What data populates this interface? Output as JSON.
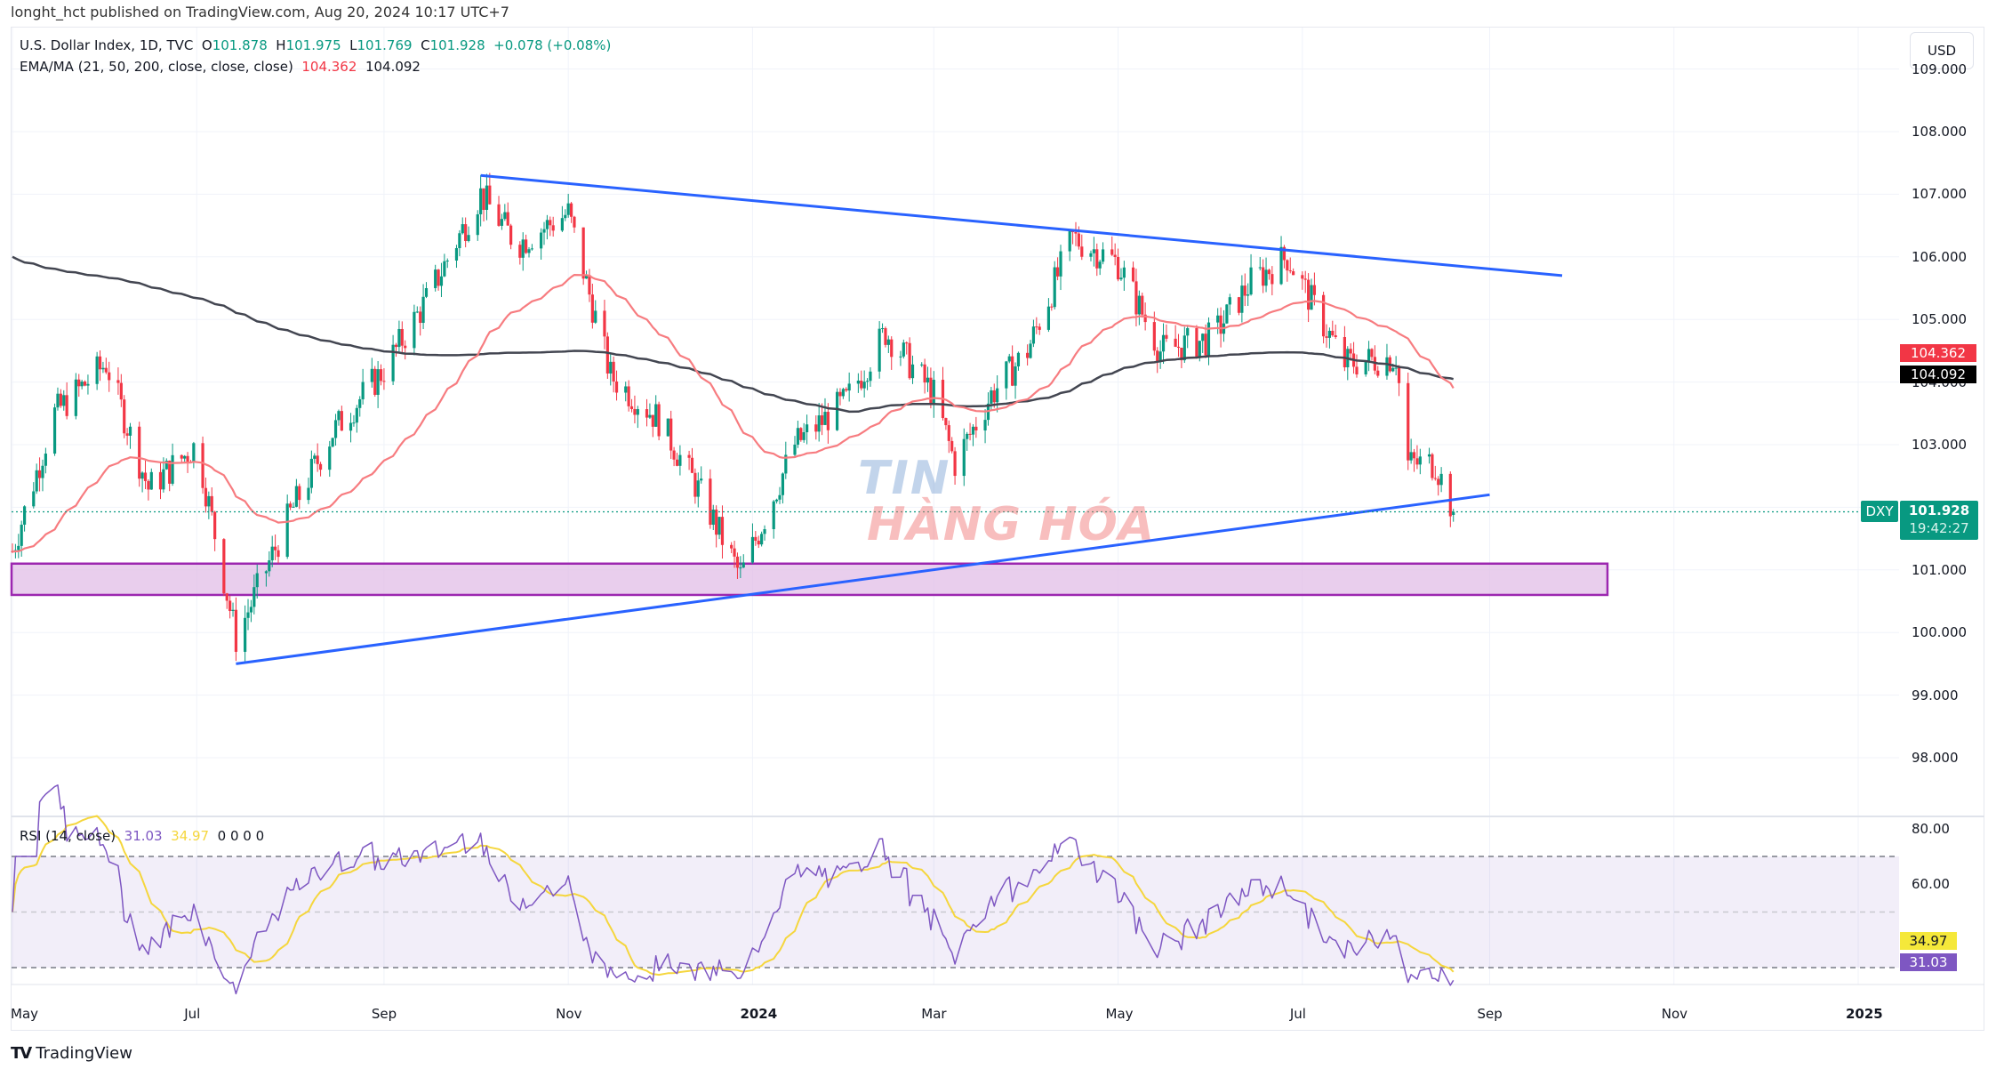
{
  "header": {
    "published": "longht_hct published on TradingView.com, Aug 20, 2024 10:17 UTC+7"
  },
  "legend": {
    "symbol": "U.S. Dollar Index, 1D, TVC",
    "o_label": "O",
    "o": "101.878",
    "h_label": "H",
    "h": "101.975",
    "l_label": "L",
    "l": "101.769",
    "c_label": "C",
    "c": "101.928",
    "change": "+0.078 (+0.08%)",
    "ma_name": "EMA/MA (21, 50, 200, close, close, close)",
    "ma1": "104.362",
    "ma2": "104.092",
    "rsi_name": "RSI (14, close)",
    "rsi": "31.03",
    "rsi_ma": "34.97",
    "rsi_extra": "0  0  0  0"
  },
  "currency_button": "USD",
  "price_tag": {
    "symbol": "DXY",
    "price": "101.928",
    "countdown": "19:42:27"
  },
  "ma_tags": {
    "ema": "104.362",
    "ma200": "104.092"
  },
  "rsi_tags": {
    "rsi_ma": "34.97",
    "rsi": "31.03"
  },
  "footer": {
    "logo_mark": "TV",
    "logo_text": "TradingView"
  },
  "watermark": {
    "line1": "TIN",
    "line2": "HÀNG HÓA"
  },
  "colors": {
    "up": "#089981",
    "down": "#f23645",
    "ema": "#f77c80",
    "ma200": "#434651",
    "trend": "#2962ff",
    "zone_fill": "#e1bee7",
    "zone_border": "#9c27b0",
    "rsi": "#7e57c2",
    "rsi_ma": "#f5d63d"
  },
  "chart_data": [
    {
      "type": "candlestick",
      "title": "U.S. Dollar Index, 1D, TVC",
      "xlabel": "",
      "ylabel": "USD",
      "x_ticks": [
        "May",
        "Jul",
        "Sep",
        "Nov",
        "2024",
        "Mar",
        "May",
        "Jul",
        "Sep",
        "Nov",
        "2025"
      ],
      "y_ticks": [
        98,
        99,
        100,
        101,
        102,
        103,
        104,
        105,
        106,
        107,
        108,
        109
      ],
      "ylim": [
        97.3,
        109.0
      ],
      "last": {
        "open": 101.878,
        "high": 101.975,
        "low": 101.769,
        "close": 101.928,
        "change": 0.078,
        "change_pct": 0.08
      },
      "close_path": {
        "dates": [
          "2023-05-01",
          "2023-05-15",
          "2023-06-01",
          "2023-06-15",
          "2023-07-01",
          "2023-07-14",
          "2023-08-01",
          "2023-08-15",
          "2023-09-01",
          "2023-09-15",
          "2023-10-03",
          "2023-10-15",
          "2023-11-01",
          "2023-11-15",
          "2023-12-01",
          "2023-12-15",
          "2023-12-28",
          "2024-01-15",
          "2024-02-01",
          "2024-02-14",
          "2024-03-01",
          "2024-03-08",
          "2024-03-20",
          "2024-04-01",
          "2024-04-16",
          "2024-05-01",
          "2024-05-15",
          "2024-06-01",
          "2024-06-14",
          "2024-06-26",
          "2024-07-15",
          "2024-08-01",
          "2024-08-05",
          "2024-08-14",
          "2024-08-20"
        ],
        "close": [
          101.3,
          103.5,
          104.3,
          102.3,
          103.0,
          99.9,
          101.9,
          103.2,
          104.2,
          105.3,
          107.0,
          106.2,
          106.7,
          104.1,
          103.4,
          102.2,
          100.9,
          103.0,
          103.7,
          104.8,
          103.8,
          102.7,
          103.8,
          104.5,
          106.3,
          105.9,
          104.5,
          104.7,
          105.6,
          106.0,
          104.3,
          104.4,
          102.7,
          102.7,
          101.93
        ]
      },
      "overlays": [
        {
          "name": "EMA 50",
          "last": 104.362,
          "color": "#f77c80"
        },
        {
          "name": "MA 200",
          "last": 104.092,
          "color": "#434651"
        }
      ],
      "annotations": [
        {
          "type": "trendline",
          "from": {
            "date": "2023-10-03",
            "price": 107.3
          },
          "to": {
            "date": "2024-09-25",
            "price": 105.7
          },
          "label": "upper trendline"
        },
        {
          "type": "trendline",
          "from": {
            "date": "2023-07-14",
            "price": 99.5
          },
          "to": {
            "date": "2024-09-01",
            "price": 102.2
          },
          "label": "lower trendline"
        },
        {
          "type": "zone",
          "price_from": 100.6,
          "price_to": 101.1,
          "date_to": "2024-10-10",
          "label": "support zone"
        }
      ]
    },
    {
      "type": "line",
      "title": "RSI (14, close)",
      "ylim": [
        20,
        85
      ],
      "y_ticks": [
        60,
        80
      ],
      "bands": [
        30,
        50,
        70
      ],
      "series": [
        {
          "name": "RSI",
          "last": 31.03
        },
        {
          "name": "RSI MA",
          "last": 34.97
        }
      ]
    }
  ]
}
